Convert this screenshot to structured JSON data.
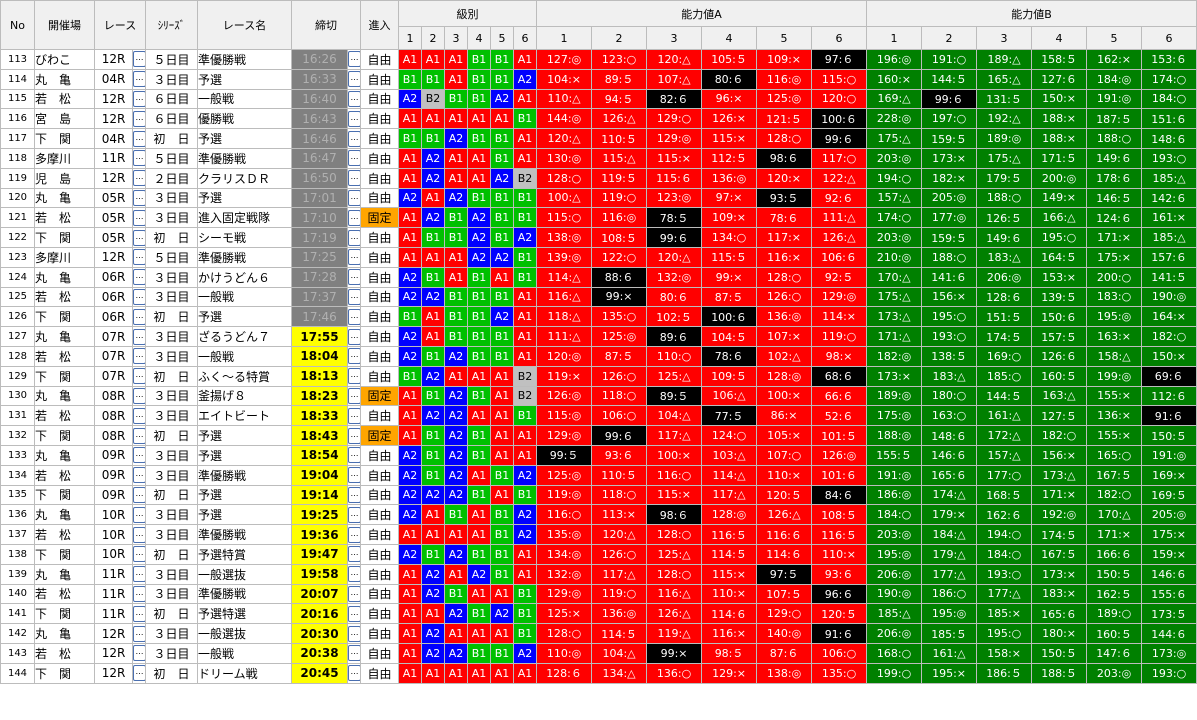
{
  "colors": {
    "grade_A1": "#ff0000",
    "grade_A2": "#0000ff",
    "grade_B1": "#00c000",
    "grade_B2": "#c0c0c0",
    "deadline_closed": "#808080",
    "deadline_open": "#ffff00",
    "entry_fixed": "#ffa500",
    "ability_a": "#ff0000",
    "ability_b": "#008000",
    "best": "#000000"
  },
  "icons": {
    "detail_button": "ellipsis-button"
  },
  "headers": {
    "no": "No",
    "venue": "開催場",
    "race": "レース",
    "series": "ｼﾘｰｽﾞ",
    "race_name": "レース名",
    "deadline": "締切",
    "entry": "進入",
    "grade": "級別",
    "ability_a": "能力値A",
    "ability_b": "能力値B",
    "lanes": [
      "1",
      "2",
      "3",
      "4",
      "5",
      "6"
    ]
  },
  "button_label": "…",
  "rows": [
    {
      "no": "113",
      "venue": "びわこ",
      "race": "12R",
      "series": "５日目",
      "name": "準優勝戦",
      "deadline": "16:26",
      "status": "closed",
      "entry": "自由",
      "grades": [
        "A1",
        "A1",
        "A1",
        "B1",
        "B1",
        "A1"
      ],
      "a": [
        "127:◎",
        "123:○",
        "120:△",
        "105:５",
        "109:×",
        "97:６"
      ],
      "a_best": 5,
      "b": [
        "196:◎",
        "191:○",
        "189:△",
        "158:５",
        "162:×",
        "153:６"
      ],
      "b_best": -1
    },
    {
      "no": "114",
      "venue": "丸　亀",
      "race": "04R",
      "series": "３日目",
      "name": "予選",
      "deadline": "16:33",
      "status": "closed",
      "entry": "自由",
      "grades": [
        "B1",
        "B1",
        "A1",
        "B1",
        "B1",
        "A2"
      ],
      "a": [
        "104:×",
        "89:５",
        "107:△",
        "80:６",
        "116:◎",
        "115:○"
      ],
      "a_best": 3,
      "b": [
        "160:×",
        "144:５",
        "165:△",
        "127:６",
        "184:◎",
        "174:○"
      ],
      "b_best": -1
    },
    {
      "no": "115",
      "venue": "若　松",
      "race": "12R",
      "series": "６日目",
      "name": "一般戦",
      "deadline": "16:40",
      "status": "closed",
      "entry": "自由",
      "grades": [
        "A2",
        "B2",
        "B1",
        "B1",
        "A2",
        "A1"
      ],
      "a": [
        "110:△",
        "94:５",
        "82:６",
        "96:×",
        "125:◎",
        "120:○"
      ],
      "a_best": 2,
      "b": [
        "169:△",
        "99:６",
        "131:５",
        "150:×",
        "191:◎",
        "184:○"
      ],
      "b_best": 1
    },
    {
      "no": "116",
      "venue": "宮　島",
      "race": "12R",
      "series": "６日目",
      "name": "優勝戦",
      "deadline": "16:43",
      "status": "closed",
      "entry": "自由",
      "grades": [
        "A1",
        "A1",
        "A1",
        "A1",
        "A1",
        "B1"
      ],
      "a": [
        "144:◎",
        "126:△",
        "129:○",
        "126:×",
        "121:５",
        "100:６"
      ],
      "a_best": 5,
      "b": [
        "228:◎",
        "197:○",
        "192:△",
        "188:×",
        "187:５",
        "151:６"
      ],
      "b_best": -1
    },
    {
      "no": "117",
      "venue": "下　関",
      "race": "04R",
      "series": "初　日",
      "name": "予選",
      "deadline": "16:46",
      "status": "closed",
      "entry": "自由",
      "grades": [
        "B1",
        "B1",
        "A2",
        "B1",
        "B1",
        "A1"
      ],
      "a": [
        "120:△",
        "110:５",
        "129:◎",
        "115:×",
        "128:○",
        "99:６"
      ],
      "a_best": 5,
      "b": [
        "175:△",
        "159:５",
        "189:◎",
        "188:×",
        "188:○",
        "148:６"
      ],
      "b_best": -1
    },
    {
      "no": "118",
      "venue": "多摩川",
      "race": "11R",
      "series": "５日目",
      "name": "準優勝戦",
      "deadline": "16:47",
      "status": "closed",
      "entry": "自由",
      "grades": [
        "A1",
        "A2",
        "A1",
        "A1",
        "B1",
        "A1"
      ],
      "a": [
        "130:◎",
        "115:△",
        "115:×",
        "112:５",
        "98:６",
        "117:○"
      ],
      "a_best": 4,
      "b": [
        "203:◎",
        "173:×",
        "175:△",
        "171:５",
        "149:６",
        "193:○"
      ],
      "b_best": -1
    },
    {
      "no": "119",
      "venue": "児　島",
      "race": "12R",
      "series": "２日目",
      "name": "クラリスＤＲ",
      "deadline": "16:50",
      "status": "closed",
      "entry": "自由",
      "grades": [
        "A1",
        "A2",
        "A1",
        "A1",
        "A2",
        "B2"
      ],
      "a": [
        "128:○",
        "119:５",
        "115:６",
        "136:◎",
        "120:×",
        "122:△"
      ],
      "a_best": -1,
      "b": [
        "194:○",
        "182:×",
        "179:５",
        "200:◎",
        "178:６",
        "185:△"
      ],
      "b_best": -1
    },
    {
      "no": "120",
      "venue": "丸　亀",
      "race": "05R",
      "series": "３日目",
      "name": "予選",
      "deadline": "17:01",
      "status": "closed",
      "entry": "自由",
      "grades": [
        "A2",
        "A1",
        "A2",
        "B1",
        "B1",
        "B1"
      ],
      "a": [
        "100:△",
        "119:○",
        "123:◎",
        "97:×",
        "93:５",
        "92:６"
      ],
      "a_best": 4,
      "b": [
        "157:△",
        "205:◎",
        "188:○",
        "149:×",
        "146:５",
        "142:６"
      ],
      "b_best": -1
    },
    {
      "no": "121",
      "venue": "若　松",
      "race": "05R",
      "series": "３日目",
      "name": "進入固定戦隊",
      "deadline": "17:10",
      "status": "closed",
      "entry": "固定",
      "grades": [
        "A1",
        "A2",
        "B1",
        "A2",
        "B1",
        "B1"
      ],
      "a": [
        "115:○",
        "116:◎",
        "78:５",
        "109:×",
        "78:６",
        "111:△"
      ],
      "a_best": 2,
      "b": [
        "174:○",
        "177:◎",
        "126:５",
        "166:△",
        "124:６",
        "161:×"
      ],
      "b_best": -1
    },
    {
      "no": "122",
      "venue": "下　関",
      "race": "05R",
      "series": "初　日",
      "name": "シーモ戦",
      "deadline": "17:19",
      "status": "closed",
      "entry": "自由",
      "grades": [
        "A1",
        "B1",
        "B1",
        "A2",
        "B1",
        "A2"
      ],
      "a": [
        "138:◎",
        "108:５",
        "99:６",
        "134:○",
        "117:×",
        "126:△"
      ],
      "a_best": 2,
      "b": [
        "203:◎",
        "159:５",
        "149:６",
        "195:○",
        "171:×",
        "185:△"
      ],
      "b_best": -1
    },
    {
      "no": "123",
      "venue": "多摩川",
      "race": "12R",
      "series": "５日目",
      "name": "準優勝戦",
      "deadline": "17:25",
      "status": "closed",
      "entry": "自由",
      "grades": [
        "A1",
        "A1",
        "A1",
        "A2",
        "A2",
        "B1"
      ],
      "a": [
        "139:◎",
        "122:○",
        "120:△",
        "115:５",
        "116:×",
        "106:６"
      ],
      "a_best": -1,
      "b": [
        "210:◎",
        "188:○",
        "183:△",
        "164:５",
        "175:×",
        "157:６"
      ],
      "b_best": -1
    },
    {
      "no": "124",
      "venue": "丸　亀",
      "race": "06R",
      "series": "３日目",
      "name": "かけうどん６",
      "deadline": "17:28",
      "status": "closed",
      "entry": "自由",
      "grades": [
        "A2",
        "B1",
        "A1",
        "B1",
        "A1",
        "B1"
      ],
      "a": [
        "114:△",
        "88:６",
        "132:◎",
        "99:×",
        "128:○",
        "92:５"
      ],
      "a_best": 1,
      "b": [
        "170:△",
        "141:６",
        "206:◎",
        "153:×",
        "200:○",
        "141:５"
      ],
      "b_best": -1
    },
    {
      "no": "125",
      "venue": "若　松",
      "race": "06R",
      "series": "３日目",
      "name": "一般戦",
      "deadline": "17:37",
      "status": "closed",
      "entry": "自由",
      "grades": [
        "A2",
        "A2",
        "B1",
        "B1",
        "B1",
        "A1"
      ],
      "a": [
        "116:△",
        "99:×",
        "80:６",
        "87:５",
        "126:○",
        "129:◎"
      ],
      "a_best": 1,
      "b": [
        "175:△",
        "156:×",
        "128:６",
        "139:５",
        "183:○",
        "190:◎"
      ],
      "b_best": -1
    },
    {
      "no": "126",
      "venue": "下　関",
      "race": "06R",
      "series": "初　日",
      "name": "予選",
      "deadline": "17:46",
      "status": "closed",
      "entry": "自由",
      "grades": [
        "B1",
        "A1",
        "B1",
        "B1",
        "A2",
        "A1"
      ],
      "a": [
        "118:△",
        "135:○",
        "102:５",
        "100:６",
        "136:◎",
        "114:×"
      ],
      "a_best": 3,
      "b": [
        "173:△",
        "195:○",
        "151:５",
        "150:６",
        "195:◎",
        "164:×"
      ],
      "b_best": -1
    },
    {
      "no": "127",
      "venue": "丸　亀",
      "race": "07R",
      "series": "３日目",
      "name": "ざるうどん７",
      "deadline": "17:55",
      "status": "open",
      "entry": "自由",
      "grades": [
        "A2",
        "A1",
        "B1",
        "B1",
        "B1",
        "A1"
      ],
      "a": [
        "111:△",
        "125:◎",
        "89:６",
        "104:５",
        "107:×",
        "119:○"
      ],
      "a_best": 2,
      "b": [
        "171:△",
        "193:○",
        "174:５",
        "157:５",
        "163:×",
        "182:○"
      ],
      "b_best": -1
    },
    {
      "no": "128",
      "venue": "若　松",
      "race": "07R",
      "series": "３日目",
      "name": "一般戦",
      "deadline": "18:04",
      "status": "open",
      "entry": "自由",
      "grades": [
        "A2",
        "B1",
        "A2",
        "B1",
        "B1",
        "A1"
      ],
      "a": [
        "120:◎",
        "87:５",
        "110:○",
        "78:６",
        "102:△",
        "98:×"
      ],
      "a_best": 3,
      "b": [
        "182:◎",
        "138:５",
        "169:○",
        "126:６",
        "158:△",
        "150:×"
      ],
      "b_best": -1
    },
    {
      "no": "129",
      "venue": "下　関",
      "race": "07R",
      "series": "初　日",
      "name": "ふく～る特賞",
      "deadline": "18:13",
      "status": "open",
      "entry": "自由",
      "grades": [
        "B1",
        "A2",
        "A1",
        "A1",
        "A1",
        "B2"
      ],
      "a": [
        "119:×",
        "126:○",
        "125:△",
        "109:５",
        "128:◎",
        "68:６"
      ],
      "a_best": 5,
      "b": [
        "173:×",
        "183:△",
        "185:○",
        "160:５",
        "199:◎",
        "69:６"
      ],
      "b_best": 5
    },
    {
      "no": "130",
      "venue": "丸　亀",
      "race": "08R",
      "series": "３日目",
      "name": "釜揚げ８",
      "deadline": "18:23",
      "status": "open",
      "entry": "固定",
      "grades": [
        "A1",
        "B1",
        "A2",
        "B1",
        "A1",
        "B2"
      ],
      "a": [
        "126:◎",
        "118:○",
        "89:５",
        "106:△",
        "100:×",
        "66:６"
      ],
      "a_best": 2,
      "b": [
        "189:◎",
        "180:○",
        "144:５",
        "163:△",
        "155:×",
        "112:６"
      ],
      "b_best": -1
    },
    {
      "no": "131",
      "venue": "若　松",
      "race": "08R",
      "series": "３日目",
      "name": "エイトビート",
      "deadline": "18:33",
      "status": "open",
      "entry": "自由",
      "grades": [
        "A1",
        "A2",
        "A2",
        "A1",
        "A1",
        "B1"
      ],
      "a": [
        "115:◎",
        "106:○",
        "104:△",
        "77:５",
        "86:×",
        "52:６"
      ],
      "a_best": 3,
      "b": [
        "175:◎",
        "163:○",
        "161:△",
        "127:５",
        "136:×",
        "91:６"
      ],
      "b_best": 5
    },
    {
      "no": "132",
      "venue": "下　関",
      "race": "08R",
      "series": "初　日",
      "name": "予選",
      "deadline": "18:43",
      "status": "open",
      "entry": "固定",
      "grades": [
        "A1",
        "B1",
        "A2",
        "B1",
        "A1",
        "A1"
      ],
      "a": [
        "129:◎",
        "99:６",
        "117:△",
        "124:○",
        "105:×",
        "101:５"
      ],
      "a_best": 1,
      "b": [
        "188:◎",
        "148:６",
        "172:△",
        "182:○",
        "155:×",
        "150:５"
      ],
      "b_best": -1
    },
    {
      "no": "133",
      "venue": "丸　亀",
      "race": "09R",
      "series": "３日目",
      "name": "予選",
      "deadline": "18:54",
      "status": "open",
      "entry": "自由",
      "grades": [
        "A2",
        "B1",
        "A2",
        "B1",
        "A1",
        "A1"
      ],
      "a": [
        "99:５",
        "93:６",
        "100:×",
        "103:△",
        "107:○",
        "126:◎"
      ],
      "a_best": 0,
      "b": [
        "155:５",
        "146:６",
        "157:△",
        "156:×",
        "165:○",
        "191:◎"
      ],
      "b_best": -1
    },
    {
      "no": "134",
      "venue": "若　松",
      "race": "09R",
      "series": "３日目",
      "name": "準優勝戦",
      "deadline": "19:04",
      "status": "open",
      "entry": "自由",
      "grades": [
        "A2",
        "B1",
        "A2",
        "A1",
        "B1",
        "A2"
      ],
      "a": [
        "125:◎",
        "110:５",
        "116:○",
        "114:△",
        "110:×",
        "101:６"
      ],
      "a_best": -1,
      "b": [
        "191:◎",
        "165:６",
        "177:○",
        "173:△",
        "167:５",
        "169:×"
      ],
      "b_best": -1
    },
    {
      "no": "135",
      "venue": "下　関",
      "race": "09R",
      "series": "初　日",
      "name": "予選",
      "deadline": "19:14",
      "status": "open",
      "entry": "自由",
      "grades": [
        "A2",
        "A2",
        "A2",
        "B1",
        "A1",
        "B1"
      ],
      "a": [
        "119:◎",
        "118:○",
        "115:×",
        "117:△",
        "120:５",
        "84:６"
      ],
      "a_best": 5,
      "b": [
        "186:◎",
        "174:△",
        "168:５",
        "171:×",
        "182:○",
        "169:５"
      ],
      "b_best": -1
    },
    {
      "no": "136",
      "venue": "丸　亀",
      "race": "10R",
      "series": "３日目",
      "name": "予選",
      "deadline": "19:25",
      "status": "open",
      "entry": "自由",
      "grades": [
        "A2",
        "A1",
        "B1",
        "A1",
        "B1",
        "A2"
      ],
      "a": [
        "116:○",
        "113:×",
        "98:６",
        "128:◎",
        "126:△",
        "108:５"
      ],
      "a_best": 2,
      "b": [
        "184:○",
        "179:×",
        "162:６",
        "192:◎",
        "170:△",
        "205:◎"
      ],
      "b_best": -1
    },
    {
      "no": "137",
      "venue": "若　松",
      "race": "10R",
      "series": "３日目",
      "name": "準優勝戦",
      "deadline": "19:36",
      "status": "open",
      "entry": "自由",
      "grades": [
        "A1",
        "A1",
        "A1",
        "A1",
        "B1",
        "A2"
      ],
      "a": [
        "135:◎",
        "120:△",
        "128:○",
        "116:５",
        "116:６",
        "116:５"
      ],
      "a_best": -1,
      "b": [
        "203:◎",
        "184:△",
        "194:○",
        "174:５",
        "171:×",
        "175:×"
      ],
      "b_best": -1
    },
    {
      "no": "138",
      "venue": "下　関",
      "race": "10R",
      "series": "初　日",
      "name": "予選特賞",
      "deadline": "19:47",
      "status": "open",
      "entry": "自由",
      "grades": [
        "A2",
        "B1",
        "A2",
        "B1",
        "B1",
        "A1"
      ],
      "a": [
        "134:◎",
        "126:○",
        "125:△",
        "114:５",
        "114:６",
        "110:×"
      ],
      "a_best": -1,
      "b": [
        "195:◎",
        "179:△",
        "184:○",
        "167:５",
        "166:６",
        "159:×"
      ],
      "b_best": -1
    },
    {
      "no": "139",
      "venue": "丸　亀",
      "race": "11R",
      "series": "３日目",
      "name": "一般選抜",
      "deadline": "19:58",
      "status": "open",
      "entry": "自由",
      "grades": [
        "A1",
        "A2",
        "A1",
        "A2",
        "B1",
        "A1"
      ],
      "a": [
        "132:◎",
        "117:△",
        "128:○",
        "115:×",
        "97:５",
        "93:６"
      ],
      "a_best": 4,
      "b": [
        "206:◎",
        "177:△",
        "193:○",
        "173:×",
        "150:５",
        "146:６"
      ],
      "b_best": -1
    },
    {
      "no": "140",
      "venue": "若　松",
      "race": "11R",
      "series": "３日目",
      "name": "準優勝戦",
      "deadline": "20:07",
      "status": "open",
      "entry": "自由",
      "grades": [
        "A1",
        "A2",
        "B1",
        "A1",
        "A1",
        "B1"
      ],
      "a": [
        "129:◎",
        "119:○",
        "116:△",
        "110:×",
        "107:５",
        "96:６"
      ],
      "a_best": 5,
      "b": [
        "190:◎",
        "186:○",
        "177:△",
        "183:×",
        "162:５",
        "155:６"
      ],
      "b_best": -1
    },
    {
      "no": "141",
      "venue": "下　関",
      "race": "11R",
      "series": "初　日",
      "name": "予選特選",
      "deadline": "20:16",
      "status": "open",
      "entry": "自由",
      "grades": [
        "A1",
        "A1",
        "A2",
        "B1",
        "A2",
        "B1"
      ],
      "a": [
        "125:×",
        "136:◎",
        "126:△",
        "114:６",
        "129:○",
        "120:５"
      ],
      "a_best": -1,
      "b": [
        "185:△",
        "195:◎",
        "185:×",
        "165:６",
        "189:○",
        "173:５"
      ],
      "b_best": -1
    },
    {
      "no": "142",
      "venue": "丸　亀",
      "race": "12R",
      "series": "３日目",
      "name": "一般選抜",
      "deadline": "20:30",
      "status": "open",
      "entry": "自由",
      "grades": [
        "A1",
        "A2",
        "A1",
        "A1",
        "A1",
        "B1"
      ],
      "a": [
        "128:○",
        "114:５",
        "119:△",
        "116:×",
        "140:◎",
        "91:６"
      ],
      "a_best": 5,
      "b": [
        "206:◎",
        "185:５",
        "195:○",
        "180:×",
        "160:５",
        "144:６"
      ],
      "b_best": -1
    },
    {
      "no": "143",
      "venue": "若　松",
      "race": "12R",
      "series": "３日目",
      "name": "一般戦",
      "deadline": "20:38",
      "status": "open",
      "entry": "自由",
      "grades": [
        "A1",
        "A2",
        "A2",
        "B1",
        "B1",
        "A2"
      ],
      "a": [
        "110:◎",
        "104:△",
        "99:×",
        "98:５",
        "87:６",
        "106:○"
      ],
      "a_best": 2,
      "b": [
        "168:○",
        "161:△",
        "158:×",
        "150:５",
        "147:６",
        "173:◎"
      ],
      "b_best": -1
    },
    {
      "no": "144",
      "venue": "下　関",
      "race": "12R",
      "series": "初　日",
      "name": "ドリーム戦",
      "deadline": "20:45",
      "status": "open",
      "entry": "自由",
      "grades": [
        "A1",
        "A1",
        "A1",
        "A1",
        "A1",
        "A1"
      ],
      "a": [
        "128:６",
        "134:△",
        "136:○",
        "129:×",
        "138:◎",
        "135:○"
      ],
      "a_best": -1,
      "b": [
        "199:○",
        "195:×",
        "186:５",
        "188:５",
        "203:◎",
        "193:○"
      ],
      "b_best": -1
    }
  ]
}
